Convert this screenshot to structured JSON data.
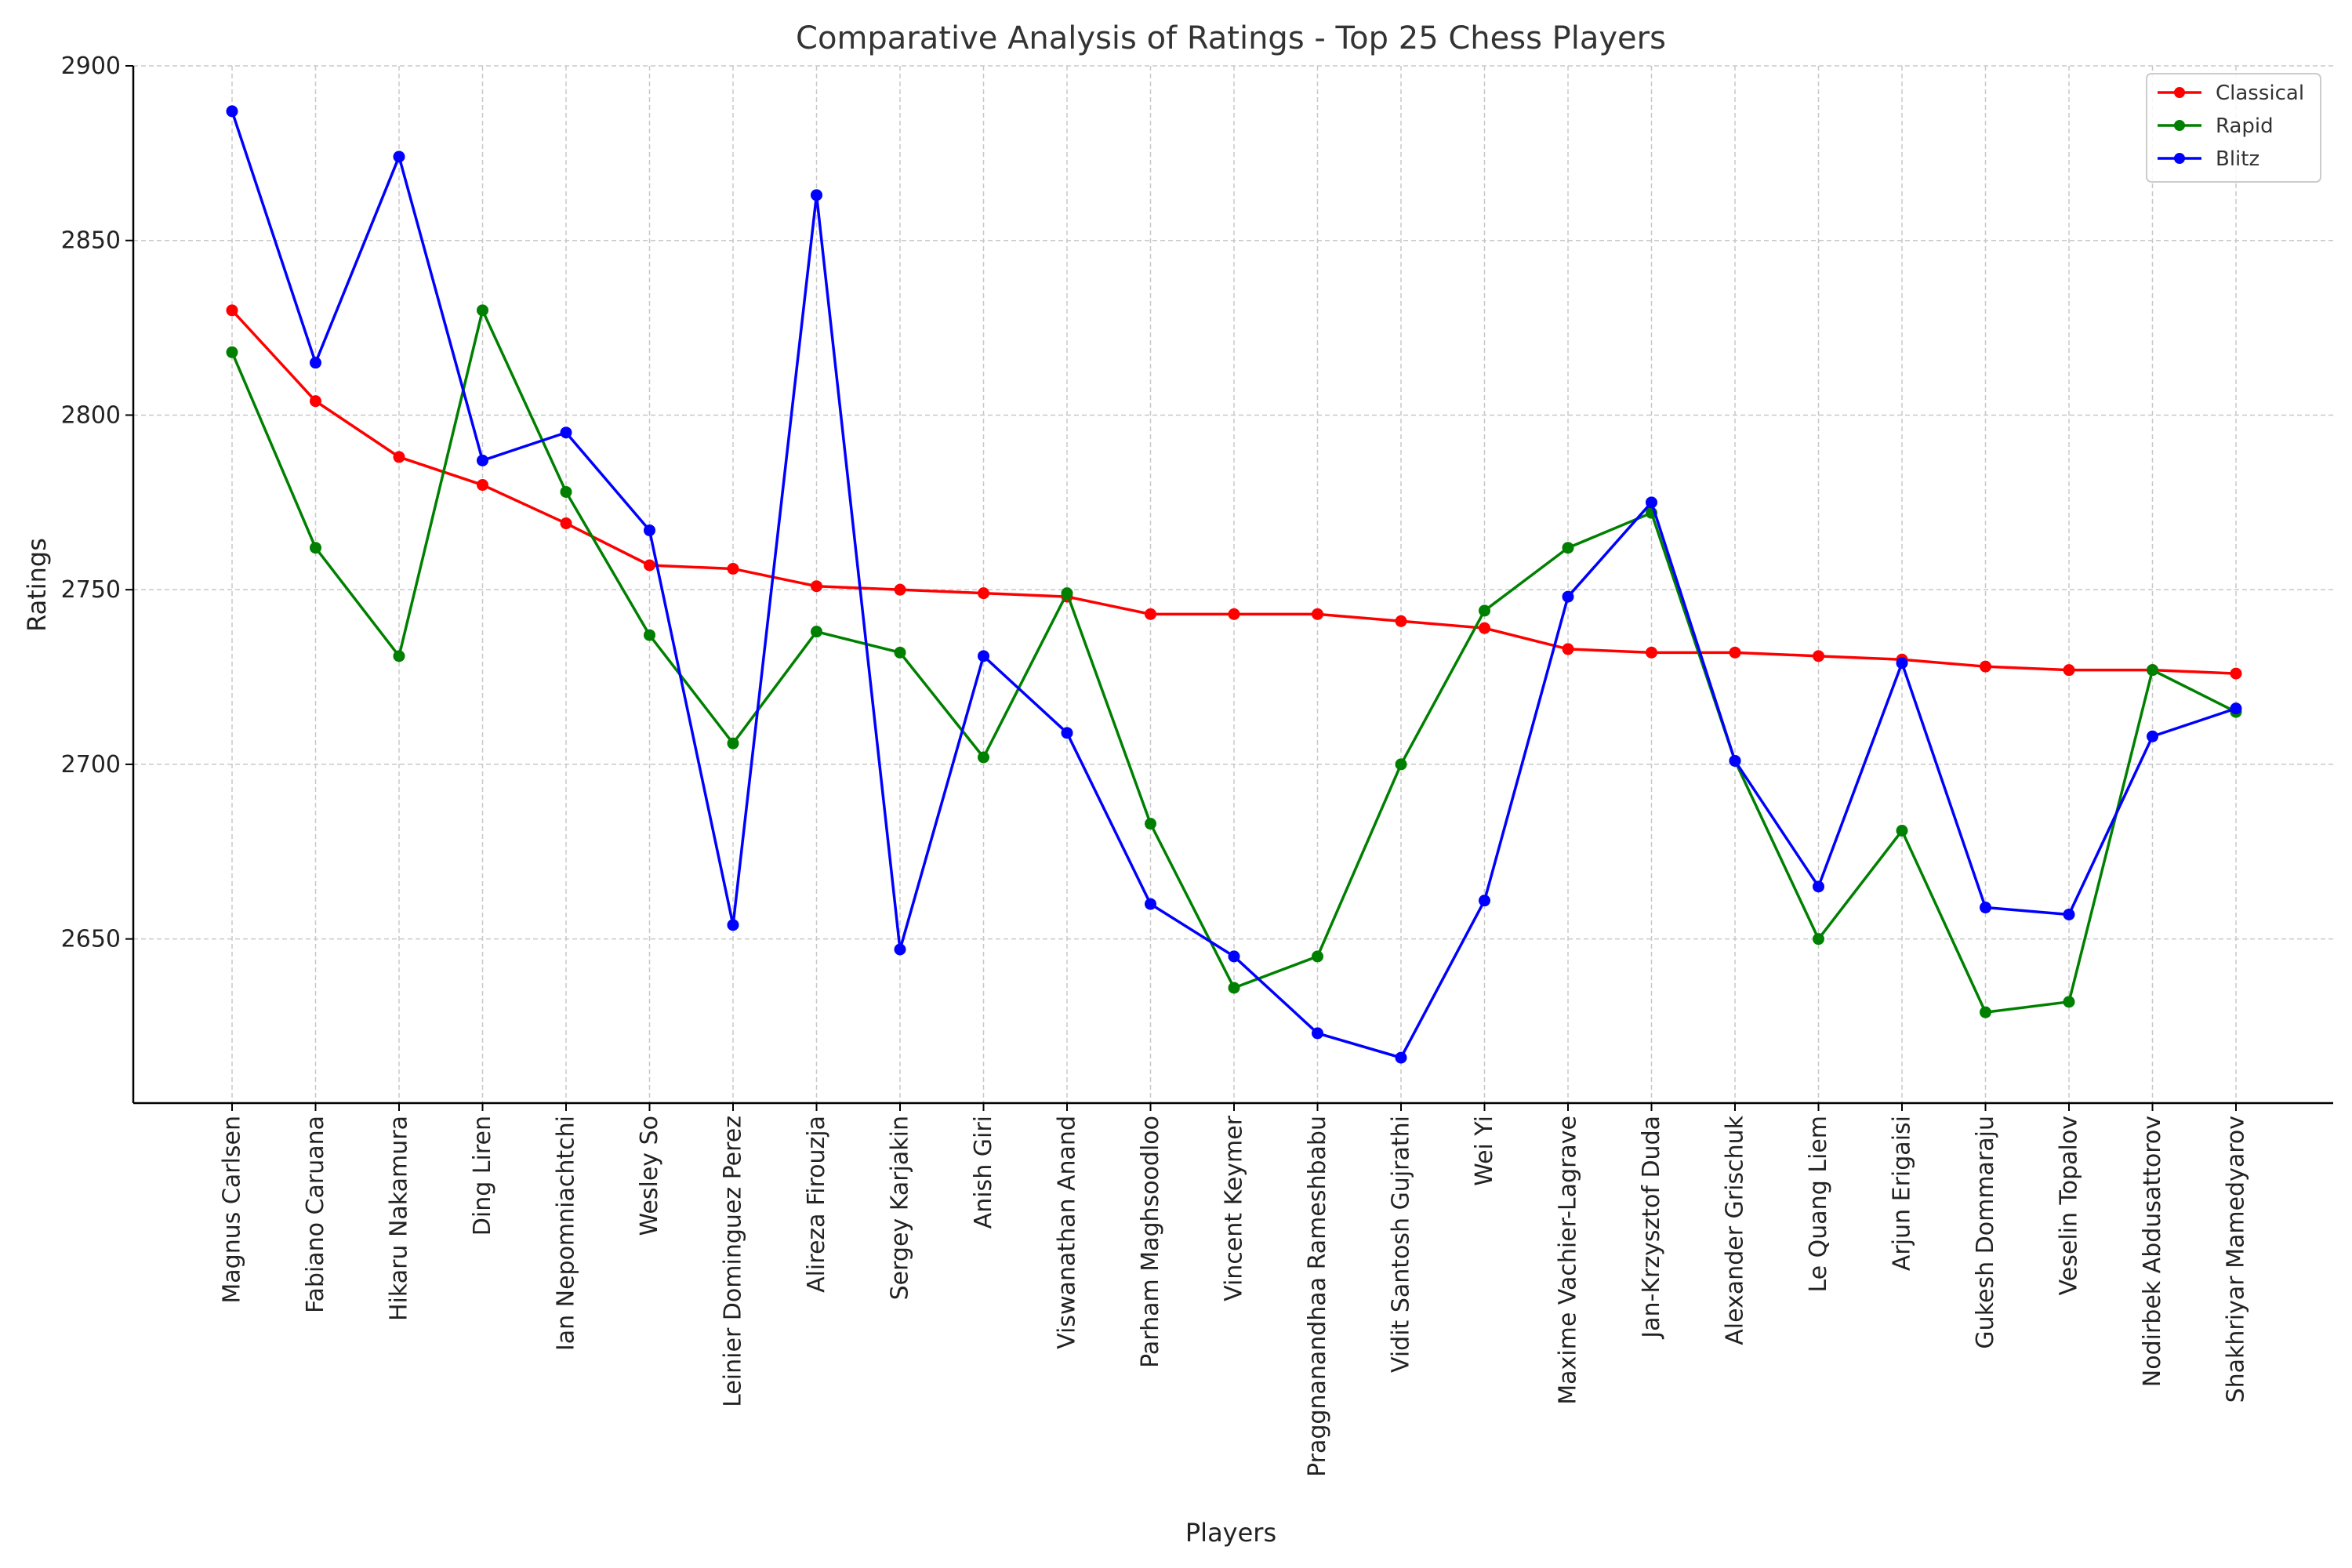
{
  "chart_data": {
    "type": "line",
    "title": "Comparative Analysis of Ratings - Top 25 Chess Players",
    "xlabel": "Players",
    "ylabel": "Ratings",
    "ylim": [
      2603,
      2900
    ],
    "yticks": [
      2650,
      2700,
      2750,
      2800,
      2850,
      2900
    ],
    "grid": true,
    "legend_position": "top-right",
    "categories": [
      "Magnus Carlsen",
      "Fabiano Caruana",
      "Hikaru Nakamura",
      "Ding Liren",
      "Ian Nepomniachtchi",
      "Wesley So",
      "Leinier Dominguez Perez",
      "Alireza Firouzja",
      "Sergey Karjakin",
      "Anish Giri",
      "Viswanathan Anand",
      "Parham Maghsoodloo",
      "Vincent Keymer",
      "Praggnanandhaa Rameshbabu",
      "Vidit Santosh Gujrathi",
      "Wei Yi",
      "Maxime Vachier-Lagrave",
      "Jan-Krzysztof Duda",
      "Alexander Grischuk",
      "Le Quang Liem",
      "Arjun Erigaisi",
      "Gukesh Dommaraju",
      "Veselin Topalov",
      "Nodirbek Abdusattorov",
      "Shakhriyar Mamedyarov"
    ],
    "series": [
      {
        "name": "Classical",
        "color": "#ff0000",
        "values": [
          2830,
          2804,
          2788,
          2780,
          2769,
          2757,
          2756,
          2751,
          2750,
          2749,
          2748,
          2743,
          2743,
          2743,
          2741,
          2739,
          2733,
          2732,
          2732,
          2731,
          2730,
          2728,
          2727,
          2727,
          2726
        ]
      },
      {
        "name": "Rapid",
        "color": "#008000",
        "values": [
          2818,
          2762,
          2731,
          2830,
          2778,
          2737,
          2706,
          2738,
          2732,
          2702,
          2749,
          2683,
          2636,
          2645,
          2700,
          2744,
          2762,
          2772,
          2701,
          2650,
          2681,
          2629,
          2632,
          2727,
          2715
        ]
      },
      {
        "name": "Blitz",
        "color": "#0000ff",
        "values": [
          2887,
          2815,
          2874,
          2787,
          2795,
          2767,
          2654,
          2863,
          2647,
          2731,
          2709,
          2660,
          2645,
          2623,
          2616,
          2661,
          2748,
          2775,
          2701,
          2665,
          2729,
          2659,
          2657,
          2708,
          2716
        ]
      }
    ]
  }
}
